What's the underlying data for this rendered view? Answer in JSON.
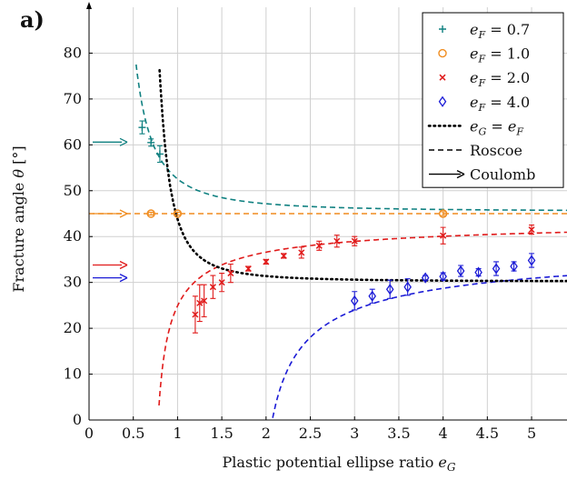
{
  "chart_data": {
    "type": "scatter",
    "panel_label": "a)",
    "xlabel": "Plastic potential ellipse ratio e_G",
    "ylabel": "Fracture angle θ [°]",
    "xlim": [
      0,
      5.4
    ],
    "ylim": [
      0,
      90
    ],
    "xticks": [
      "0",
      "0.5",
      "1",
      "1.5",
      "2",
      "2.5",
      "3",
      "3.5",
      "4",
      "4.5",
      "5"
    ],
    "yticks": [
      "0",
      "10",
      "20",
      "30",
      "40",
      "50",
      "60",
      "70",
      "80"
    ],
    "grid": true,
    "legend_position": "top-right",
    "legend": [
      {
        "label": "e_F = 0.7",
        "marker": "plus",
        "color": "#0f8080"
      },
      {
        "label": "e_F = 1.0",
        "marker": "circle",
        "color": "#f08c1e"
      },
      {
        "label": "e_F = 2.0",
        "marker": "x",
        "color": "#e01a1a"
      },
      {
        "label": "e_F = 4.0",
        "marker": "diamond",
        "color": "#1a1ad6"
      },
      {
        "label": "e_G = e_F",
        "marker": "dotted-line",
        "color": "#000000"
      },
      {
        "label": "Roscoe",
        "marker": "dashed-line",
        "color": "#000000"
      },
      {
        "label": "Coulomb",
        "marker": "arrow",
        "color": "#000000"
      }
    ],
    "series": [
      {
        "name": "e_F = 0.7",
        "color": "#0f8080",
        "marker": "plus",
        "points": [
          [
            0.6,
            63.8,
            1.4
          ],
          [
            0.7,
            60.5,
            0.8
          ],
          [
            0.8,
            58.0,
            1.8
          ]
        ],
        "roscoe_curve": "e_F = 0.7",
        "coulomb_angle": 60.6
      },
      {
        "name": "e_F = 1.0",
        "color": "#f08c1e",
        "marker": "circle",
        "points": [
          [
            0.7,
            45.0,
            0.3
          ],
          [
            1.0,
            45.0,
            0.3
          ],
          [
            4.0,
            45.0,
            0.4
          ]
        ],
        "roscoe_curve": "e_F = 1.0",
        "coulomb_angle": 45.0
      },
      {
        "name": "e_F = 2.0",
        "color": "#e01a1a",
        "marker": "x",
        "points": [
          [
            1.2,
            23.0,
            4.0
          ],
          [
            1.25,
            25.5,
            4.0
          ],
          [
            1.3,
            26.0,
            3.5
          ],
          [
            1.4,
            29.0,
            2.5
          ],
          [
            1.5,
            30.0,
            2.0
          ],
          [
            1.6,
            32.0,
            2.0
          ],
          [
            1.8,
            33.0,
            0.5
          ],
          [
            2.0,
            34.5,
            0.5
          ],
          [
            2.2,
            35.8,
            0.5
          ],
          [
            2.4,
            36.5,
            1.2
          ],
          [
            2.6,
            38.0,
            1.0
          ],
          [
            2.8,
            39.0,
            1.3
          ],
          [
            3.0,
            39.0,
            1.0
          ],
          [
            4.0,
            40.2,
            1.8
          ],
          [
            5.0,
            41.5,
            1.0
          ]
        ],
        "roscoe_curve": "e_F = 2.0",
        "coulomb_angle": 33.8
      },
      {
        "name": "e_F = 4.0",
        "color": "#1a1ad6",
        "marker": "diamond",
        "points": [
          [
            3.0,
            26.0,
            2.0
          ],
          [
            3.2,
            27.0,
            1.5
          ],
          [
            3.4,
            28.5,
            2.0
          ],
          [
            3.6,
            29.0,
            1.8
          ],
          [
            3.8,
            31.0,
            0.5
          ],
          [
            4.0,
            31.3,
            0.8
          ],
          [
            4.2,
            32.5,
            1.2
          ],
          [
            4.4,
            32.2,
            0.8
          ],
          [
            4.6,
            33.0,
            1.5
          ],
          [
            4.8,
            33.5,
            1.0
          ],
          [
            5.0,
            34.8,
            1.5
          ]
        ],
        "roscoe_curve": "e_F = 4.0",
        "coulomb_angle": 31.0
      }
    ],
    "curves": {
      "roscoe": [
        {
          "e_F": 0.7,
          "color": "#0f8080",
          "x_range": [
            0.42,
            5.4
          ]
        },
        {
          "e_F": 1.0,
          "color": "#f08c1e",
          "x_range": [
            0.0,
            5.4
          ]
        },
        {
          "e_F": 2.0,
          "color": "#e01a1a",
          "x_range": [
            0.72,
            5.4
          ]
        },
        {
          "e_F": 4.0,
          "color": "#1a1ad6",
          "x_range": [
            1.9,
            5.4
          ]
        }
      ],
      "equal_ratio": {
        "color": "#000000",
        "x_range": [
          0.63,
          5.4
        ]
      }
    }
  }
}
